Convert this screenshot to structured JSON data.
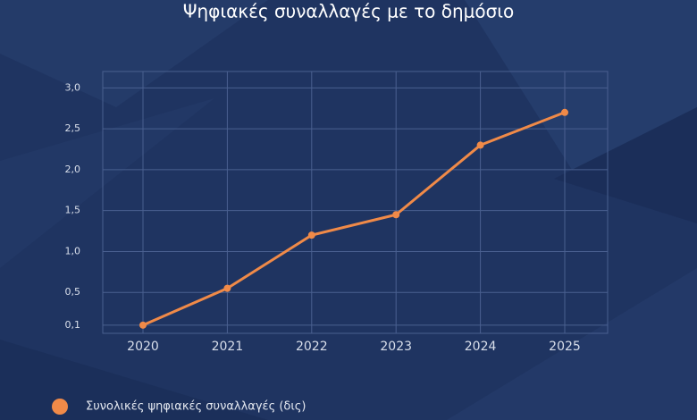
{
  "chart_data": {
    "type": "line",
    "title": "Ψηφιακές συναλλαγές με το δημόσιο",
    "categories": [
      "2020",
      "2021",
      "2022",
      "2023",
      "2024",
      "2025"
    ],
    "series": [
      {
        "name": "Συνολικές ψηφιακές συναλλαγές (δις)",
        "color": "#f08a48",
        "values": [
          0.1,
          0.55,
          1.2,
          1.45,
          2.3,
          2.7
        ]
      }
    ],
    "ylim": [
      0,
      3.2
    ],
    "yticks": [
      {
        "value": 0.1,
        "label": "0,1"
      },
      {
        "value": 0.5,
        "label": "0,5"
      },
      {
        "value": 1,
        "label": "1,0"
      },
      {
        "value": 1.5,
        "label": "1,5"
      },
      {
        "value": 2,
        "label": "2,0"
      },
      {
        "value": 2.5,
        "label": "2,5"
      },
      {
        "value": 3,
        "label": "3,0"
      }
    ],
    "grid": true
  }
}
